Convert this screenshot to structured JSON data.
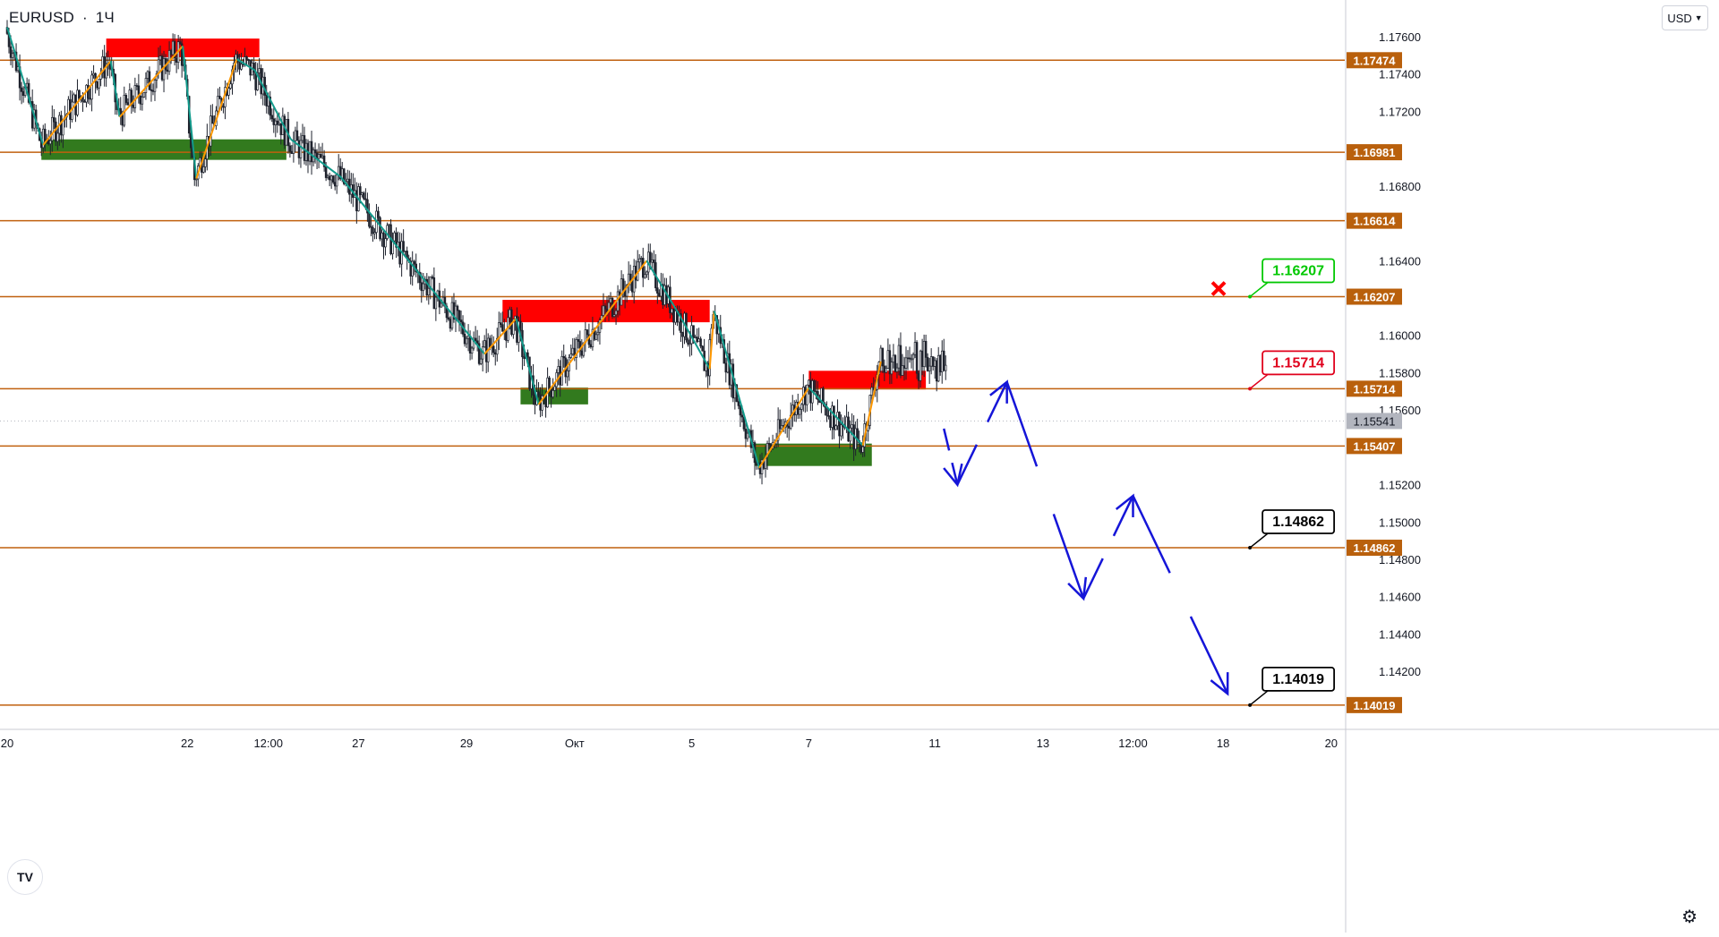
{
  "header": {
    "symbol": "EURUSD",
    "interval": "1Ч",
    "dot": "·"
  },
  "currency_selector": {
    "label": "USD",
    "icon": "chevron-down-icon"
  },
  "logo": {
    "text": "TV",
    "icon": "tradingview-logo-icon"
  },
  "settings": {
    "icon": "gear-icon"
  },
  "colors": {
    "level_line": "#c0600f",
    "level_label_bg": "#b9600c",
    "current_label_bg": "#b2b5be",
    "supply_zone": "#ff0000",
    "demand_zone": "#327a1e",
    "zigzag_up": "#ff9800",
    "zigzag_down": "#129b8c",
    "forecast": "#1515d8",
    "target_green": "#00c800",
    "target_red": "#e0001c",
    "target_black": "#000000",
    "invalidation": "#ff0000",
    "candle": "#1e222d"
  },
  "chart_data": {
    "type": "candlestick",
    "price_axis": {
      "range": [
        1.14,
        1.177
      ],
      "ticks": [
        "1.17600",
        "1.17400",
        "1.17200",
        "1.16800",
        "1.16400",
        "1.16000",
        "1.15800",
        "1.15600",
        "1.15200",
        "1.15000",
        "1.14800",
        "1.14600",
        "1.14400",
        "1.14200"
      ]
    },
    "time_axis": {
      "labels": [
        {
          "label": "20",
          "t": 0
        },
        {
          "label": "22",
          "t": 2
        },
        {
          "label": "12:00",
          "t": 2.9
        },
        {
          "label": "27",
          "t": 3.9
        },
        {
          "label": "29",
          "t": 5.1
        },
        {
          "label": "Окт",
          "t": 6.3
        },
        {
          "label": "5",
          "t": 7.6
        },
        {
          "label": "7",
          "t": 8.9
        },
        {
          "label": "11",
          "t": 10.3
        },
        {
          "label": "13",
          "t": 11.5
        },
        {
          "label": "12:00",
          "t": 12.5
        },
        {
          "label": "18",
          "t": 13.5
        },
        {
          "label": "20",
          "t": 14.7
        }
      ]
    },
    "levels": [
      {
        "value": 1.17474,
        "label": "1.17474"
      },
      {
        "value": 1.16981,
        "label": "1.16981"
      },
      {
        "value": 1.16614,
        "label": "1.16614"
      },
      {
        "value": 1.16207,
        "label": "1.16207"
      },
      {
        "value": 1.15714,
        "label": "1.15714"
      },
      {
        "value": 1.15407,
        "label": "1.15407"
      },
      {
        "value": 1.14862,
        "label": "1.14862"
      },
      {
        "value": 1.14019,
        "label": "1.14019"
      }
    ],
    "current_price": {
      "value": 1.15541,
      "label": "1.15541"
    },
    "supply_zones": [
      {
        "t": [
          1.1,
          2.8
        ],
        "price": [
          1.1749,
          1.1759
        ]
      },
      {
        "t": [
          5.5,
          7.8
        ],
        "price": [
          1.1607,
          1.1619
        ]
      },
      {
        "t": [
          8.9,
          10.2
        ],
        "price": [
          1.1571,
          1.1581
        ]
      }
    ],
    "demand_zones": [
      {
        "t": [
          0.38,
          3.1
        ],
        "price": [
          1.1694,
          1.1705
        ]
      },
      {
        "t": [
          5.7,
          6.45
        ],
        "price": [
          1.1563,
          1.1572
        ]
      },
      {
        "t": [
          8.3,
          9.6
        ],
        "price": [
          1.153,
          1.1542
        ]
      }
    ],
    "zigzag": [
      {
        "t": 0.0,
        "p": 1.1765
      },
      {
        "t": 0.4,
        "p": 1.1702
      },
      {
        "t": 1.15,
        "p": 1.1747
      },
      {
        "t": 1.25,
        "p": 1.1717
      },
      {
        "t": 1.95,
        "p": 1.1755
      },
      {
        "t": 2.1,
        "p": 1.1684
      },
      {
        "t": 2.55,
        "p": 1.1748
      },
      {
        "t": 2.75,
        "p": 1.1742
      },
      {
        "t": 3.15,
        "p": 1.1705
      },
      {
        "t": 3.7,
        "p": 1.1685
      },
      {
        "t": 5.3,
        "p": 1.159
      },
      {
        "t": 5.65,
        "p": 1.1609
      },
      {
        "t": 5.9,
        "p": 1.1563
      },
      {
        "t": 7.1,
        "p": 1.164
      },
      {
        "t": 7.45,
        "p": 1.1612
      },
      {
        "t": 7.8,
        "p": 1.1582
      },
      {
        "t": 7.85,
        "p": 1.1613
      },
      {
        "t": 8.35,
        "p": 1.1529
      },
      {
        "t": 8.9,
        "p": 1.1572
      },
      {
        "t": 9.5,
        "p": 1.1541
      },
      {
        "t": 9.7,
        "p": 1.1586
      }
    ],
    "forecast_path": [
      {
        "t": 10.4,
        "p": 1.155
      },
      {
        "t": 10.55,
        "p": 1.152
      },
      {
        "t": 11.1,
        "p": 1.1575
      },
      {
        "t": 11.95,
        "p": 1.1459
      },
      {
        "t": 12.5,
        "p": 1.1514
      },
      {
        "t": 13.55,
        "p": 1.1408
      }
    ],
    "target_labels": [
      {
        "value": 1.16207,
        "label": "1.16207",
        "color": "green",
        "t": 13.55
      },
      {
        "value": 1.15714,
        "label": "1.15714",
        "color": "red",
        "t": 13.55
      },
      {
        "value": 1.14862,
        "label": "1.14862",
        "color": "black",
        "t": 13.55
      },
      {
        "value": 1.14019,
        "label": "1.14019",
        "color": "black",
        "t": 13.55
      }
    ],
    "invalidation_marker": {
      "t": 13.45,
      "p": 1.16207
    },
    "candles": []
  }
}
